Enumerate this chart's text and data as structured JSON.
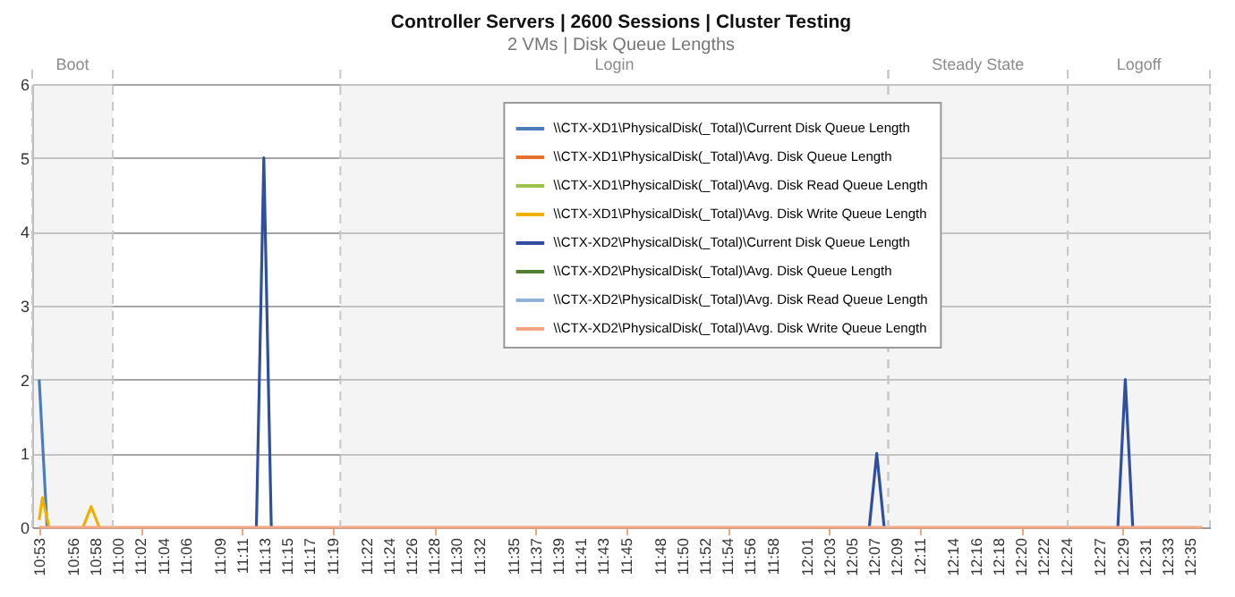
{
  "chart_data": {
    "type": "line",
    "title": "Controller Servers | 2600 Sessions | Cluster Testing",
    "subtitle": "2 VMs | Disk Queue Lengths",
    "xlim": [
      10.873,
      12.612
    ],
    "ylim": [
      0,
      6
    ],
    "yticks": [
      0,
      1,
      2,
      3,
      4,
      5,
      6
    ],
    "xticks": [
      {
        "value": 10.8833,
        "label": "10:53"
      },
      {
        "value": 10.9333,
        "label": "10:56"
      },
      {
        "value": 10.9667,
        "label": "10:58"
      },
      {
        "value": 11,
        "label": "11:00"
      },
      {
        "value": 11.0333,
        "label": "11:02"
      },
      {
        "value": 11.0667,
        "label": "11:04"
      },
      {
        "value": 11.1,
        "label": "11:06"
      },
      {
        "value": 11.15,
        "label": "11:09"
      },
      {
        "value": 11.1833,
        "label": "11:11"
      },
      {
        "value": 11.2167,
        "label": "11:13"
      },
      {
        "value": 11.25,
        "label": "11:15"
      },
      {
        "value": 11.2833,
        "label": "11:17"
      },
      {
        "value": 11.3167,
        "label": "11:19"
      },
      {
        "value": 11.3667,
        "label": "11:22"
      },
      {
        "value": 11.4,
        "label": "11:24"
      },
      {
        "value": 11.4333,
        "label": "11:26"
      },
      {
        "value": 11.4667,
        "label": "11:28"
      },
      {
        "value": 11.5,
        "label": "11:30"
      },
      {
        "value": 11.5333,
        "label": "11:32"
      },
      {
        "value": 11.5833,
        "label": "11:35"
      },
      {
        "value": 11.6167,
        "label": "11:37"
      },
      {
        "value": 11.65,
        "label": "11:39"
      },
      {
        "value": 11.6833,
        "label": "11:41"
      },
      {
        "value": 11.7167,
        "label": "11:43"
      },
      {
        "value": 11.75,
        "label": "11:45"
      },
      {
        "value": 11.8,
        "label": "11:48"
      },
      {
        "value": 11.8333,
        "label": "11:50"
      },
      {
        "value": 11.8667,
        "label": "11:52"
      },
      {
        "value": 11.9,
        "label": "11:54"
      },
      {
        "value": 11.9333,
        "label": "11:56"
      },
      {
        "value": 11.9667,
        "label": "11:58"
      },
      {
        "value": 12.0167,
        "label": "12:01"
      },
      {
        "value": 12.05,
        "label": "12:03"
      },
      {
        "value": 12.0833,
        "label": "12:05"
      },
      {
        "value": 12.1167,
        "label": "12:07"
      },
      {
        "value": 12.15,
        "label": "12:09"
      },
      {
        "value": 12.1833,
        "label": "12:11"
      },
      {
        "value": 12.2333,
        "label": "12:14"
      },
      {
        "value": 12.2667,
        "label": "12:16"
      },
      {
        "value": 12.3,
        "label": "12:18"
      },
      {
        "value": 12.3333,
        "label": "12:20"
      },
      {
        "value": 12.3667,
        "label": "12:22"
      },
      {
        "value": 12.4,
        "label": "12:24"
      },
      {
        "value": 12.45,
        "label": "12:27"
      },
      {
        "value": 12.4833,
        "label": "12:29"
      },
      {
        "value": 12.5167,
        "label": "12:31"
      },
      {
        "value": 12.55,
        "label": "12:33"
      },
      {
        "value": 12.5833,
        "label": "12:35"
      }
    ],
    "series": [
      {
        "name": "\\\\CTX-XD1\\PhysicalDisk(_Total)\\Current Disk Queue Length",
        "color": "#4a7ebb",
        "x": [
          10.8833,
          10.895
        ],
        "values": [
          2,
          0
        ]
      },
      {
        "name": "\\\\CTX-XD1\\PhysicalDisk(_Total)\\Avg. Disk Queue Length",
        "color": "#e8702a"
      },
      {
        "name": "\\\\CTX-XD1\\PhysicalDisk(_Total)\\Avg. Disk Read Queue Length",
        "color": "#9bc34a"
      },
      {
        "name": "\\\\CTX-XD1\\PhysicalDisk(_Total)\\Avg. Disk Write Queue Length",
        "color": "#f0b000",
        "x": [
          10.8833,
          10.888,
          10.898,
          10.92,
          10.948,
          10.96,
          10.972
        ],
        "values": [
          0.1,
          0.4,
          0,
          null,
          0,
          0.28,
          0
        ]
      },
      {
        "name": "\\\\CTX-XD2\\PhysicalDisk(_Total)\\Current Disk Queue Length",
        "color": "#2f4f9f",
        "x": [
          11.204,
          11.215,
          11.226,
          11.6,
          12.109,
          12.12,
          12.131,
          12.3,
          12.476,
          12.487,
          12.498
        ],
        "values": [
          0,
          5,
          0,
          null,
          0,
          1,
          0,
          null,
          0,
          2,
          0
        ]
      },
      {
        "name": "\\\\CTX-XD2\\PhysicalDisk(_Total)\\Avg. Disk Queue Length",
        "color": "#4f7f2f"
      },
      {
        "name": "\\\\CTX-XD2\\PhysicalDisk(_Total)\\Avg. Disk Read Queue Length",
        "color": "#8fb4d8"
      },
      {
        "name": "\\\\CTX-XD2\\PhysicalDisk(_Total)\\Avg. Disk Write Queue Length",
        "color": "#f4a582",
        "x": [
          10.8833,
          12.6
        ],
        "values": [
          0,
          0
        ]
      }
    ],
    "bands": [
      {
        "axis": "x",
        "from": 10.873,
        "to": 10.992,
        "label": "Boot",
        "color": "#e6e6e6"
      },
      {
        "axis": "x",
        "from": 11.328,
        "to": 12.137,
        "label": "Login",
        "color": "#e6e6e6"
      },
      {
        "axis": "x",
        "from": 12.137,
        "to": 12.402,
        "label": "Steady State",
        "color": "#e6e6e6"
      },
      {
        "axis": "x",
        "from": 12.402,
        "to": 12.612,
        "label": "Logoff",
        "color": "#e6e6e6"
      }
    ],
    "grid": "y",
    "legend": "top",
    "marker": "none",
    "line_style": "solid"
  }
}
